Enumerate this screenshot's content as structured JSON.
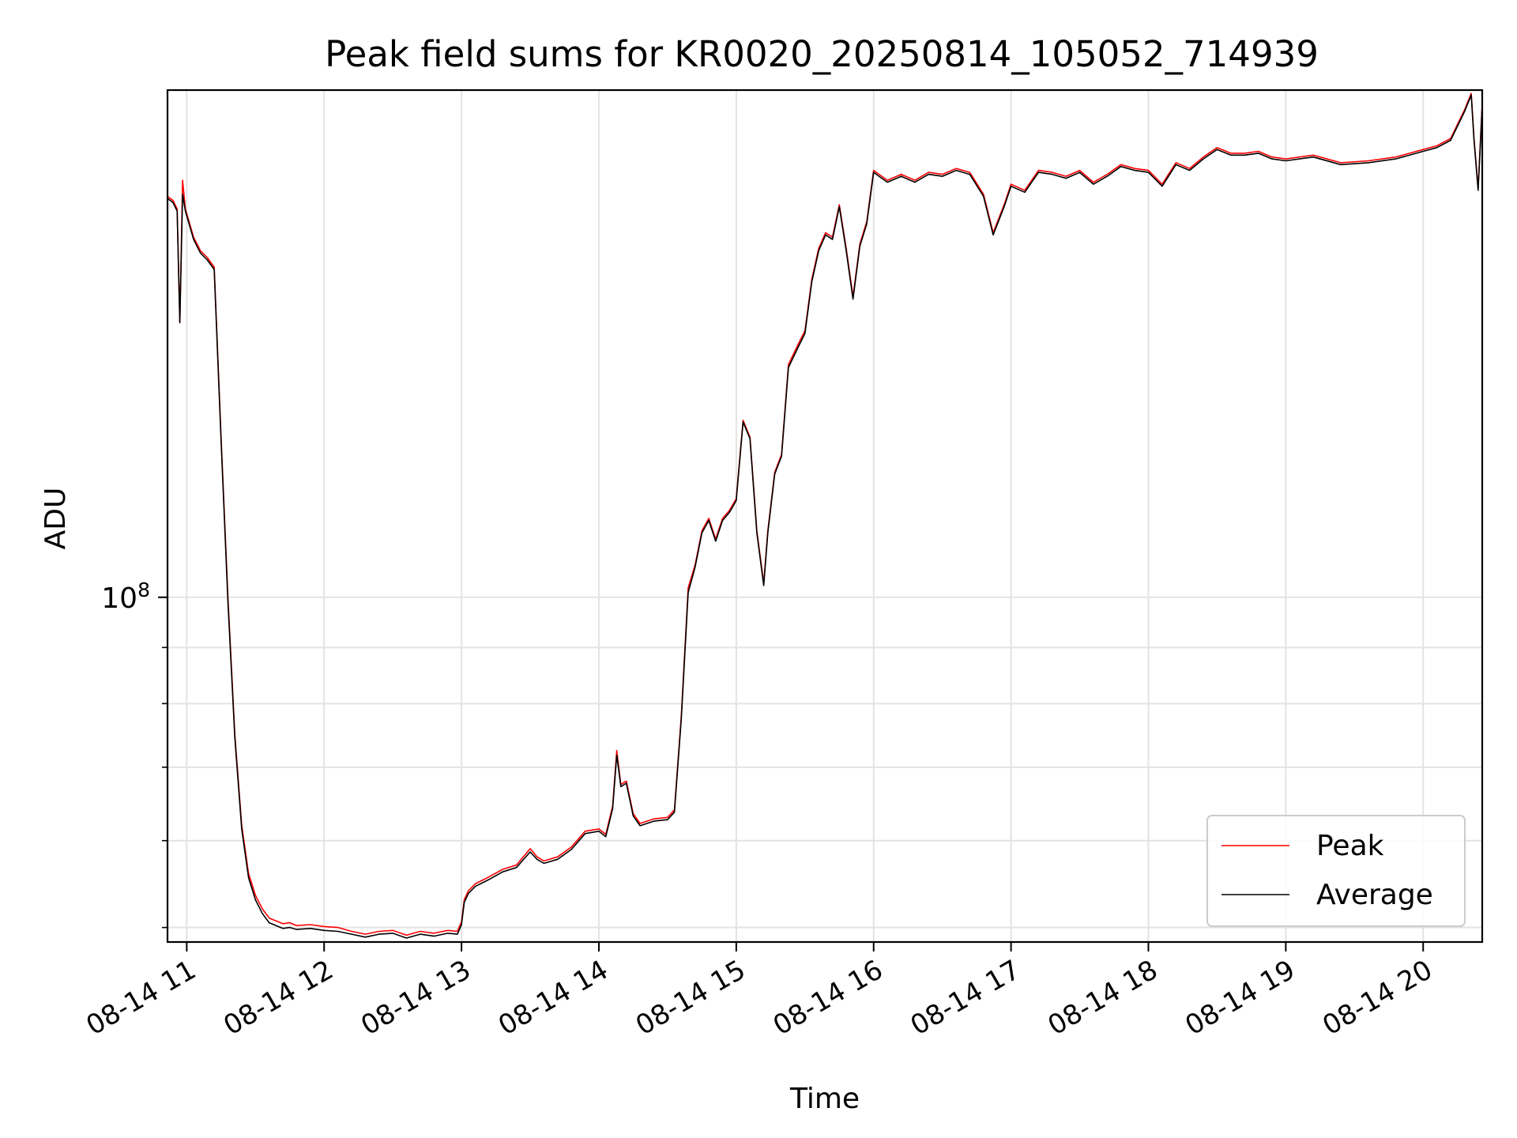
{
  "chart_data": {
    "type": "line",
    "title": "Peak field sums for KR0020_20250814_105052_714939",
    "xlabel": "Time",
    "ylabel": "ADU",
    "yscale": "log",
    "grid": true,
    "legend_position": "lower-right",
    "x_tick_labels": [
      "08-14 11",
      "08-14 12",
      "08-14 13",
      "08-14 14",
      "08-14 15",
      "08-14 16",
      "08-14 17",
      "08-14 18",
      "08-14 19",
      "08-14 20"
    ],
    "x_tick_hours": [
      11,
      12,
      13,
      14,
      15,
      16,
      17,
      18,
      19,
      20
    ],
    "xlim": [
      10.86,
      20.43
    ],
    "y_tick_label_base": "10",
    "y_tick_label_exp": "8",
    "y_major_tick": 100000000,
    "y_minor_ticks": [
      50000000,
      60000000,
      70000000,
      80000000,
      90000000
    ],
    "ylim": [
      48500000,
      290000000
    ],
    "series": [
      {
        "name": "Peak",
        "color": "#ff0000",
        "x": [
          10.86,
          10.9,
          10.93,
          10.95,
          10.97,
          10.99,
          11.05,
          11.1,
          11.15,
          11.2,
          11.25,
          11.3,
          11.35,
          11.4,
          11.45,
          11.5,
          11.55,
          11.6,
          11.65,
          11.7,
          11.75,
          11.8,
          11.9,
          12.0,
          12.1,
          12.2,
          12.3,
          12.4,
          12.5,
          12.6,
          12.7,
          12.8,
          12.9,
          12.97,
          13.0,
          13.02,
          13.05,
          13.1,
          13.2,
          13.3,
          13.4,
          13.5,
          13.55,
          13.6,
          13.7,
          13.8,
          13.9,
          14.0,
          14.05,
          14.1,
          14.13,
          14.16,
          14.2,
          14.25,
          14.3,
          14.4,
          14.5,
          14.55,
          14.6,
          14.65,
          14.7,
          14.75,
          14.8,
          14.85,
          14.9,
          14.95,
          15.0,
          15.05,
          15.1,
          15.15,
          15.2,
          15.23,
          15.28,
          15.33,
          15.38,
          15.45,
          15.5,
          15.55,
          15.6,
          15.65,
          15.7,
          15.75,
          15.8,
          15.85,
          15.9,
          15.95,
          16.0,
          16.1,
          16.2,
          16.3,
          16.4,
          16.5,
          16.6,
          16.7,
          16.8,
          16.87,
          16.95,
          17.0,
          17.1,
          17.2,
          17.3,
          17.4,
          17.5,
          17.6,
          17.7,
          17.8,
          17.9,
          18.0,
          18.1,
          18.2,
          18.3,
          18.4,
          18.5,
          18.6,
          18.7,
          18.8,
          18.9,
          19.0,
          19.2,
          19.4,
          19.6,
          19.8,
          20.0,
          20.1,
          20.2,
          20.3,
          20.35,
          20.37,
          20.4,
          20.43
        ],
        "y": [
          232000000,
          230000000,
          226000000,
          178000000,
          240000000,
          226000000,
          213000000,
          207000000,
          204000000,
          200000000,
          140000000,
          100000000,
          75000000,
          62000000,
          56000000,
          53500000,
          52000000,
          51000000,
          50700000,
          50400000,
          50500000,
          50200000,
          50300000,
          50100000,
          50000000,
          49600000,
          49300000,
          49600000,
          49700000,
          49200000,
          49600000,
          49400000,
          49700000,
          49600000,
          50600000,
          53000000,
          54000000,
          54800000,
          55600000,
          56500000,
          57000000,
          59000000,
          58000000,
          57500000,
          58000000,
          59200000,
          61200000,
          61500000,
          60800000,
          64500000,
          72500000,
          67500000,
          68000000,
          63500000,
          62200000,
          62800000,
          63000000,
          64000000,
          78000000,
          102000000,
          107000000,
          115000000,
          118000000,
          113000000,
          118000000,
          120000000,
          123000000,
          145000000,
          140000000,
          115000000,
          103000000,
          115000000,
          130000000,
          135000000,
          163000000,
          170000000,
          175000000,
          195000000,
          208000000,
          215000000,
          213000000,
          228000000,
          208000000,
          188000000,
          210000000,
          220000000,
          245000000,
          240000000,
          243000000,
          240000000,
          244000000,
          243000000,
          246000000,
          244000000,
          233000000,
          215000000,
          228000000,
          238000000,
          235000000,
          245000000,
          244000000,
          242000000,
          245000000,
          239000000,
          243000000,
          248000000,
          246000000,
          245000000,
          238000000,
          249000000,
          246000000,
          252000000,
          257000000,
          254000000,
          254000000,
          255000000,
          252000000,
          251000000,
          253000000,
          249000000,
          250000000,
          252000000,
          256000000,
          258000000,
          262000000,
          278000000,
          288000000,
          262000000,
          236000000,
          282000000
        ]
      },
      {
        "name": "Average",
        "color": "#000000",
        "x": [
          10.86,
          10.9,
          10.93,
          10.95,
          10.97,
          10.99,
          11.05,
          11.1,
          11.15,
          11.2,
          11.25,
          11.3,
          11.35,
          11.4,
          11.45,
          11.5,
          11.55,
          11.6,
          11.65,
          11.7,
          11.75,
          11.8,
          11.9,
          12.0,
          12.1,
          12.2,
          12.3,
          12.4,
          12.5,
          12.6,
          12.7,
          12.8,
          12.9,
          12.97,
          13.0,
          13.02,
          13.05,
          13.1,
          13.2,
          13.3,
          13.4,
          13.5,
          13.55,
          13.6,
          13.7,
          13.8,
          13.9,
          14.0,
          14.05,
          14.1,
          14.13,
          14.16,
          14.2,
          14.25,
          14.3,
          14.4,
          14.5,
          14.55,
          14.6,
          14.65,
          14.7,
          14.75,
          14.8,
          14.85,
          14.9,
          14.95,
          15.0,
          15.05,
          15.1,
          15.15,
          15.2,
          15.23,
          15.28,
          15.33,
          15.38,
          15.45,
          15.5,
          15.55,
          15.6,
          15.65,
          15.7,
          15.75,
          15.8,
          15.85,
          15.9,
          15.95,
          16.0,
          16.1,
          16.2,
          16.3,
          16.4,
          16.5,
          16.6,
          16.7,
          16.8,
          16.87,
          16.95,
          17.0,
          17.1,
          17.2,
          17.3,
          17.4,
          17.5,
          17.6,
          17.7,
          17.8,
          17.9,
          18.0,
          18.1,
          18.2,
          18.3,
          18.4,
          18.5,
          18.6,
          18.7,
          18.8,
          18.9,
          19.0,
          19.2,
          19.4,
          19.6,
          19.8,
          20.0,
          20.1,
          20.2,
          20.3,
          20.35,
          20.37,
          20.4,
          20.43
        ],
        "y": [
          231000000,
          229000000,
          225000000,
          178000000,
          233000000,
          225000000,
          212000000,
          206000000,
          203000000,
          199000000,
          139000000,
          99000000,
          74500000,
          61500000,
          55500000,
          53000000,
          51500000,
          50500000,
          50200000,
          49900000,
          50000000,
          49800000,
          49900000,
          49700000,
          49600000,
          49300000,
          49000000,
          49300000,
          49400000,
          48900000,
          49300000,
          49100000,
          49400000,
          49300000,
          50300000,
          52700000,
          53700000,
          54500000,
          55300000,
          56200000,
          56700000,
          58600000,
          57700000,
          57200000,
          57700000,
          58900000,
          60900000,
          61200000,
          60500000,
          64200000,
          71800000,
          67200000,
          67700000,
          63200000,
          61900000,
          62500000,
          62700000,
          63700000,
          77500000,
          101000000,
          106500000,
          114500000,
          117500000,
          112500000,
          117500000,
          119500000,
          122500000,
          144500000,
          139500000,
          114500000,
          102500000,
          114500000,
          129500000,
          134500000,
          162000000,
          169000000,
          174000000,
          194000000,
          207000000,
          214000000,
          212000000,
          227000000,
          207000000,
          187000000,
          209000000,
          219000000,
          244000000,
          239000000,
          242000000,
          239000000,
          243000000,
          242000000,
          245000000,
          243000000,
          232000000,
          214000000,
          227000000,
          237000000,
          234000000,
          244000000,
          243000000,
          241000000,
          244000000,
          238000000,
          242000000,
          247000000,
          245000000,
          244000000,
          237000000,
          248000000,
          245000000,
          251000000,
          256000000,
          253000000,
          253000000,
          254000000,
          251000000,
          250000000,
          252000000,
          248000000,
          249000000,
          251000000,
          255000000,
          257000000,
          261000000,
          277000000,
          287000000,
          261000000,
          235000000,
          281000000
        ]
      }
    ]
  }
}
